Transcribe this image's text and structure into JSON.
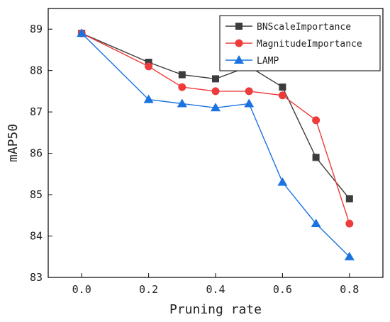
{
  "chart_data": {
    "type": "line",
    "xlabel": "Pruning rate",
    "ylabel": "mAP50",
    "xlim": [
      -0.1,
      0.9
    ],
    "ylim": [
      83,
      89.5
    ],
    "xticks": [
      0.0,
      0.2,
      0.4,
      0.6,
      0.8
    ],
    "xtick_labels": [
      "0.0",
      "0.2",
      "0.4",
      "0.6",
      "0.8"
    ],
    "yticks": [
      83,
      84,
      85,
      86,
      87,
      88,
      89
    ],
    "ytick_labels": [
      "83",
      "84",
      "85",
      "86",
      "87",
      "88",
      "89"
    ],
    "grid": false,
    "legend_position": "top-right",
    "x": [
      0.0,
      0.2,
      0.3,
      0.4,
      0.5,
      0.6,
      0.7,
      0.8
    ],
    "series": [
      {
        "name": "BNScaleImportance",
        "values": [
          88.9,
          88.2,
          87.9,
          87.8,
          88.1,
          87.6,
          85.9,
          84.9
        ],
        "color": "#3c3c3c",
        "marker": "square"
      },
      {
        "name": "MagnitudeImportance",
        "values": [
          88.9,
          88.1,
          87.6,
          87.5,
          87.5,
          87.4,
          86.8,
          84.3
        ],
        "color": "#ee3b3b",
        "marker": "circle"
      },
      {
        "name": "LAMP",
        "values": [
          88.9,
          87.3,
          87.2,
          87.1,
          87.2,
          85.3,
          84.3,
          83.5
        ],
        "color": "#1a73e0",
        "marker": "triangle"
      }
    ]
  }
}
